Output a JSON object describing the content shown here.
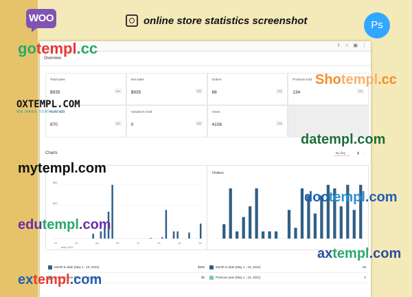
{
  "header": {
    "logo": "WOO",
    "title": "online store statistics screenshot",
    "app_badge": "Ps"
  },
  "browser": {
    "page": "Overview"
  },
  "stats": [
    {
      "label": "Total sales",
      "value": "$935",
      "delta": "0%"
    },
    {
      "label": "Net sales",
      "value": "$935",
      "delta": "0%"
    },
    {
      "label": "Orders",
      "value": "68",
      "delta": "0%"
    },
    {
      "label": "Products sold",
      "value": "134",
      "delta": "0%"
    },
    {
      "label": "Items sold",
      "value": "870",
      "delta": "0%"
    },
    {
      "label": "Variations Sold",
      "value": "0",
      "delta": "0%"
    },
    {
      "label": "Views",
      "value": "4108",
      "delta": "0%"
    }
  ],
  "charts_section": {
    "heading": "Charts",
    "interval": "By day"
  },
  "chart_data": [
    {
      "type": "bar",
      "title": "Net sales",
      "y_ticks": [
        "$80",
        "$40"
      ],
      "x_ticks": [
        "01",
        "03",
        "06",
        "09",
        "12",
        "13",
        "15",
        "16"
      ],
      "x_sublabel": "May 2022",
      "values": [
        0,
        0,
        0,
        0,
        0,
        0,
        0,
        0,
        0,
        0,
        8,
        0,
        12,
        18,
        45,
        90,
        0,
        0,
        0,
        0,
        0,
        0,
        0,
        0,
        0,
        1,
        0,
        0,
        2,
        48,
        0,
        12,
        12,
        0,
        0,
        10,
        0,
        0,
        25
      ],
      "color": "#2f5f86"
    },
    {
      "type": "bar",
      "title": "Orders",
      "values": [
        0,
        4,
        14,
        2,
        6,
        9,
        14,
        2,
        2,
        2,
        0,
        8,
        3,
        14,
        12,
        7,
        12,
        15,
        14,
        9,
        15,
        8,
        15
      ],
      "color": "#2f5f86"
    }
  ],
  "legends": [
    [
      {
        "text": "Month to date (May 1 - 16, 2022)",
        "value": "$935",
        "checked": true,
        "color": "#2f5f86"
      },
      {
        "text": "Previous year (May 1 - 16, 2021)",
        "value": "$0",
        "checked": true,
        "color": "#7ec8b0"
      }
    ],
    [
      {
        "text": "Month to date (May 1 - 16, 2022)",
        "value": "68",
        "checked": true,
        "color": "#2f5f86"
      },
      {
        "text": "Previous year (May 1 - 16, 2021)",
        "value": "0",
        "checked": true,
        "color": "#7ec8b0"
      }
    ]
  ],
  "watermarks": {
    "gotempl": [
      "go",
      "templ",
      ".cc"
    ],
    "shotempl": [
      "Sho",
      "templ",
      ".cc"
    ],
    "oxtempl": [
      "OXTEMPL.COM",
      "WE MAKE TEMPLATES"
    ],
    "datempl": [
      "da",
      "templ",
      ".com"
    ],
    "mytempl": [
      "my",
      "templ",
      ".com"
    ],
    "doctempl": [
      "doc",
      "templ",
      ".com"
    ],
    "edutempl": [
      "edu",
      "templ",
      ".com"
    ],
    "axtempl": [
      "ax",
      "templ",
      ".com"
    ],
    "extempl": [
      "ex",
      "templ",
      ".com"
    ]
  }
}
